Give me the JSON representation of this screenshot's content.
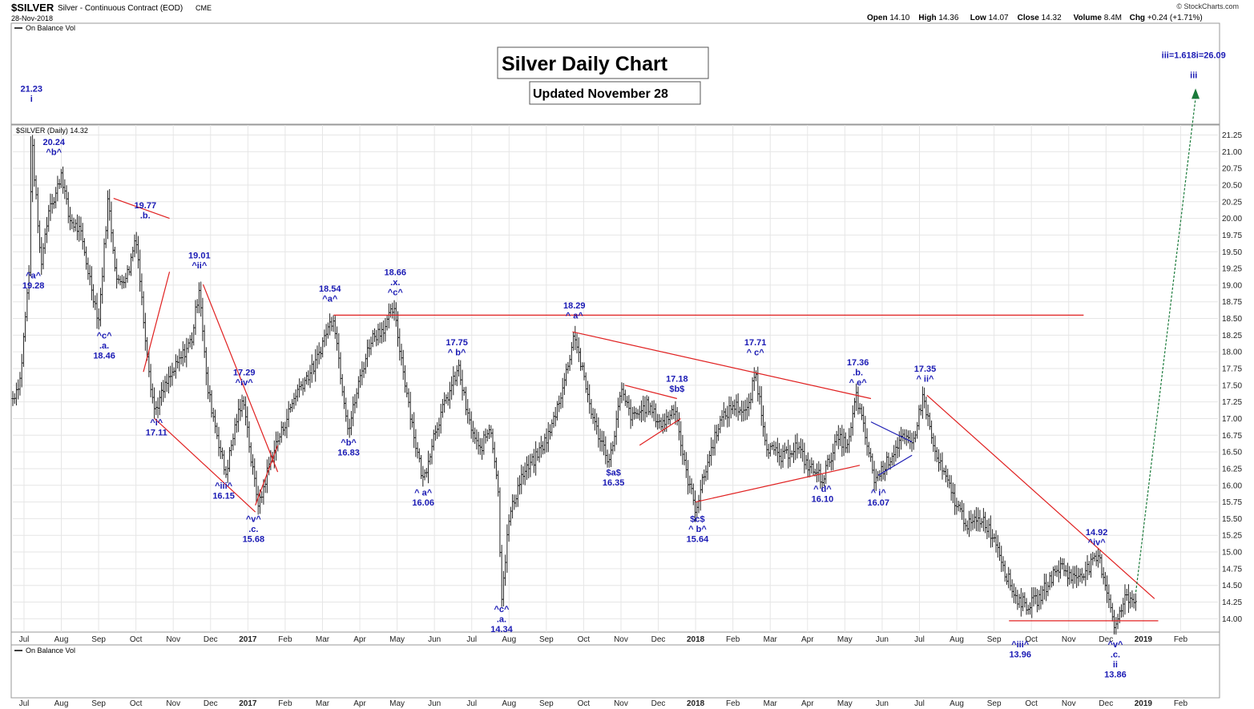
{
  "header": {
    "symbol": "$SILVER",
    "description": "Silver - Continuous Contract (EOD)",
    "exchange": "CME",
    "date": "28-Nov-2018",
    "watermark": "© StockCharts.com",
    "stats": [
      {
        "label": "Open",
        "value": "14.10"
      },
      {
        "label": "High",
        "value": "14.36"
      },
      {
        "label": "Low",
        "value": "14.07"
      },
      {
        "label": "Close",
        "value": "14.32"
      },
      {
        "label": "Volume",
        "value": "8.4M"
      },
      {
        "label": "Chg",
        "value": "+0.24 (+1.71%)"
      }
    ]
  },
  "panels": {
    "top_indicator": "On Balance Vol",
    "price_legend": "$SILVER (Daily) 14.32",
    "bottom_indicator": "On Balance Vol"
  },
  "titles": {
    "main": "Silver Daily Chart",
    "updated": "Updated November 28"
  },
  "colors": {
    "price_bar": "#222222",
    "trendline": "#e02020",
    "wave_label": "#1a1ab4",
    "projection": "#1a7a3a",
    "triangle_blue": "#1a1ab4",
    "grid": "#e6e6e6"
  },
  "chart_data": {
    "type": "ohlc",
    "series_name": "$SILVER (Daily)",
    "yrange": [
      13.8,
      21.3
    ],
    "yticks": [
      "21.25",
      "21.00",
      "20.75",
      "20.50",
      "20.25",
      "20.00",
      "19.75",
      "19.50",
      "19.25",
      "19.00",
      "18.75",
      "18.50",
      "18.25",
      "18.00",
      "17.75",
      "17.50",
      "17.25",
      "17.00",
      "16.75",
      "16.50",
      "16.25",
      "16.00",
      "15.75",
      "15.50",
      "15.25",
      "15.00",
      "14.75",
      "14.50",
      "14.25",
      "14.00"
    ],
    "xlabels": [
      {
        "label": "Jul",
        "t": 0.3
      },
      {
        "label": "Aug",
        "t": 1.3
      },
      {
        "label": "Sep",
        "t": 2.3
      },
      {
        "label": "Oct",
        "t": 3.3
      },
      {
        "label": "Nov",
        "t": 4.3
      },
      {
        "label": "Dec",
        "t": 5.3
      },
      {
        "label": "2017",
        "t": 6.3
      },
      {
        "label": "Feb",
        "t": 7.3
      },
      {
        "label": "Mar",
        "t": 8.3
      },
      {
        "label": "Apr",
        "t": 9.3
      },
      {
        "label": "May",
        "t": 10.3
      },
      {
        "label": "Jun",
        "t": 11.3
      },
      {
        "label": "Jul",
        "t": 12.3
      },
      {
        "label": "Aug",
        "t": 13.3
      },
      {
        "label": "Sep",
        "t": 14.3
      },
      {
        "label": "Oct",
        "t": 15.3
      },
      {
        "label": "Nov",
        "t": 16.3
      },
      {
        "label": "Dec",
        "t": 17.3
      },
      {
        "label": "2018",
        "t": 18.3
      },
      {
        "label": "Feb",
        "t": 19.3
      },
      {
        "label": "Mar",
        "t": 20.3
      },
      {
        "label": "Apr",
        "t": 21.3
      },
      {
        "label": "May",
        "t": 22.3
      },
      {
        "label": "Jun",
        "t": 23.3
      },
      {
        "label": "Jul",
        "t": 24.3
      },
      {
        "label": "Aug",
        "t": 25.3
      },
      {
        "label": "Sep",
        "t": 26.3
      },
      {
        "label": "Oct",
        "t": 27.3
      },
      {
        "label": "Nov",
        "t": 28.3
      },
      {
        "label": "Dec",
        "t": 29.3
      },
      {
        "label": "2019",
        "t": 30.3
      },
      {
        "label": "Feb",
        "t": 31.3
      }
    ],
    "tmax": 32.3,
    "price_path": [
      [
        0.0,
        17.3
      ],
      [
        0.2,
        17.6
      ],
      [
        0.45,
        19.3
      ],
      [
        0.5,
        21.23
      ],
      [
        0.75,
        19.3
      ],
      [
        1.0,
        20.3
      ],
      [
        1.1,
        20.24
      ],
      [
        1.3,
        20.7
      ],
      [
        1.5,
        20.0
      ],
      [
        1.8,
        19.8
      ],
      [
        2.1,
        19.0
      ],
      [
        2.3,
        18.46
      ],
      [
        2.55,
        20.3
      ],
      [
        2.8,
        19.0
      ],
      [
        3.1,
        19.2
      ],
      [
        3.3,
        19.77
      ],
      [
        3.5,
        18.5
      ],
      [
        3.7,
        17.5
      ],
      [
        3.8,
        17.11
      ],
      [
        4.1,
        17.5
      ],
      [
        4.5,
        17.9
      ],
      [
        4.8,
        18.2
      ],
      [
        5.0,
        19.01
      ],
      [
        5.2,
        17.5
      ],
      [
        5.5,
        16.7
      ],
      [
        5.7,
        16.15
      ],
      [
        6.0,
        17.0
      ],
      [
        6.2,
        17.29
      ],
      [
        6.4,
        16.3
      ],
      [
        6.6,
        15.68
      ],
      [
        6.9,
        16.4
      ],
      [
        7.2,
        16.8
      ],
      [
        7.6,
        17.4
      ],
      [
        8.1,
        17.8
      ],
      [
        8.4,
        18.3
      ],
      [
        8.6,
        18.54
      ],
      [
        8.8,
        17.6
      ],
      [
        9.0,
        16.83
      ],
      [
        9.3,
        17.6
      ],
      [
        9.6,
        18.2
      ],
      [
        10.0,
        18.4
      ],
      [
        10.2,
        18.66
      ],
      [
        10.5,
        17.6
      ],
      [
        10.8,
        16.6
      ],
      [
        11.0,
        16.06
      ],
      [
        11.3,
        16.8
      ],
      [
        11.7,
        17.4
      ],
      [
        11.95,
        17.75
      ],
      [
        12.2,
        17.0
      ],
      [
        12.5,
        16.5
      ],
      [
        12.8,
        16.9
      ],
      [
        13.0,
        16.0
      ],
      [
        13.1,
        14.34
      ],
      [
        13.3,
        15.5
      ],
      [
        13.6,
        16.1
      ],
      [
        14.0,
        16.4
      ],
      [
        14.4,
        16.8
      ],
      [
        14.8,
        17.6
      ],
      [
        15.05,
        18.29
      ],
      [
        15.3,
        17.6
      ],
      [
        15.6,
        16.9
      ],
      [
        16.0,
        16.35
      ],
      [
        16.3,
        17.4
      ],
      [
        16.6,
        17.0
      ],
      [
        17.0,
        17.2
      ],
      [
        17.4,
        16.9
      ],
      [
        17.75,
        17.18
      ],
      [
        18.0,
        16.3
      ],
      [
        18.3,
        15.64
      ],
      [
        18.6,
        16.3
      ],
      [
        18.9,
        16.9
      ],
      [
        19.3,
        17.2
      ],
      [
        19.7,
        17.1
      ],
      [
        19.9,
        17.71
      ],
      [
        20.2,
        16.6
      ],
      [
        20.6,
        16.4
      ],
      [
        21.0,
        16.6
      ],
      [
        21.3,
        16.3
      ],
      [
        21.7,
        16.1
      ],
      [
        22.1,
        16.7
      ],
      [
        22.4,
        16.6
      ],
      [
        22.6,
        17.36
      ],
      [
        22.9,
        16.6
      ],
      [
        23.1,
        16.07
      ],
      [
        23.5,
        16.4
      ],
      [
        23.8,
        16.7
      ],
      [
        24.1,
        16.6
      ],
      [
        24.4,
        17.35
      ],
      [
        24.7,
        16.5
      ],
      [
        25.0,
        16.1
      ],
      [
        25.3,
        15.7
      ],
      [
        25.6,
        15.4
      ],
      [
        26.0,
        15.5
      ],
      [
        26.4,
        15.1
      ],
      [
        26.6,
        14.7
      ],
      [
        26.9,
        14.3
      ],
      [
        27.2,
        14.2
      ],
      [
        27.5,
        14.3
      ],
      [
        27.8,
        14.6
      ],
      [
        28.1,
        14.8
      ],
      [
        28.4,
        14.6
      ],
      [
        28.8,
        14.75
      ],
      [
        29.1,
        14.92
      ],
      [
        29.3,
        14.5
      ],
      [
        29.55,
        13.86
      ],
      [
        29.8,
        14.3
      ],
      [
        30.1,
        14.32
      ]
    ],
    "trendlines_red": [
      {
        "t1": 2.7,
        "p1": 20.3,
        "t2": 4.2,
        "p2": 20.0
      },
      {
        "t1": 3.5,
        "p1": 17.7,
        "t2": 4.2,
        "p2": 19.2
      },
      {
        "t1": 3.8,
        "p1": 17.0,
        "t2": 6.5,
        "p2": 15.6
      },
      {
        "t1": 5.1,
        "p1": 19.01,
        "t2": 7.1,
        "p2": 16.2
      },
      {
        "t1": 6.5,
        "p1": 15.7,
        "t2": 7.1,
        "p2": 16.6
      },
      {
        "t1": 8.6,
        "p1": 18.55,
        "t2": 28.7,
        "p2": 18.55
      },
      {
        "t1": 15.0,
        "p1": 18.3,
        "t2": 23.0,
        "p2": 17.3
      },
      {
        "t1": 16.4,
        "p1": 17.5,
        "t2": 17.8,
        "p2": 17.3
      },
      {
        "t1": 16.8,
        "p1": 16.6,
        "t2": 17.9,
        "p2": 17.0
      },
      {
        "t1": 18.3,
        "p1": 15.75,
        "t2": 22.7,
        "p2": 16.3
      },
      {
        "t1": 24.5,
        "p1": 17.35,
        "t2": 30.6,
        "p2": 14.3
      },
      {
        "t1": 26.7,
        "p1": 13.97,
        "t2": 30.7,
        "p2": 13.97
      }
    ],
    "trendlines_blue": [
      {
        "t1": 23.0,
        "p1": 16.95,
        "t2": 24.1,
        "p2": 16.65
      },
      {
        "t1": 23.2,
        "p1": 16.15,
        "t2": 24.1,
        "p2": 16.45
      }
    ],
    "projection": {
      "t1": 30.1,
      "p1": 14.4,
      "t2": 31.7,
      "p2": 21.9
    },
    "annotations": [
      {
        "lines": [
          "21.23",
          "i"
        ],
        "t": 0.5,
        "p": 21.9,
        "big": 1
      },
      {
        "lines": [
          "20.24",
          "^b^"
        ],
        "t": 1.1,
        "p": 21.1
      },
      {
        "lines": [
          "^a^",
          "19.28"
        ],
        "t": 0.55,
        "p": 19.1
      },
      {
        "lines": [
          "19.77",
          ".b."
        ],
        "t": 3.55,
        "p": 20.15
      },
      {
        "lines": [
          "^c^",
          ".a.",
          "18.46"
        ],
        "t": 2.45,
        "p": 18.2
      },
      {
        "lines": [
          "19.01",
          "^ii^"
        ],
        "t": 5.0,
        "p": 19.4
      },
      {
        "lines": [
          "^i^",
          "17.11"
        ],
        "t": 3.85,
        "p": 16.9
      },
      {
        "lines": [
          "17.29",
          "^iv^"
        ],
        "t": 6.2,
        "p": 17.65
      },
      {
        "lines": [
          "^iii^",
          "16.15"
        ],
        "t": 5.65,
        "p": 15.95
      },
      {
        "lines": [
          "^v^",
          ".c.",
          "15.68"
        ],
        "t": 6.45,
        "p": 15.45
      },
      {
        "lines": [
          "18.54",
          "^a^"
        ],
        "t": 8.5,
        "p": 18.9
      },
      {
        "lines": [
          "^b^",
          "16.83"
        ],
        "t": 9.0,
        "p": 16.6
      },
      {
        "lines": [
          "18.66",
          ".x.",
          "^c^"
        ],
        "t": 10.25,
        "p": 19.15
      },
      {
        "lines": [
          "^ a^",
          "16.06"
        ],
        "t": 11.0,
        "p": 15.85
      },
      {
        "lines": [
          "17.75",
          "^ b^"
        ],
        "t": 11.9,
        "p": 18.1
      },
      {
        "lines": [
          "^c^",
          ".a.",
          "14.34"
        ],
        "t": 13.1,
        "p": 14.1
      },
      {
        "lines": [
          "18.29",
          "^ a^"
        ],
        "t": 15.05,
        "p": 18.65
      },
      {
        "lines": [
          "$a$",
          "16.35"
        ],
        "t": 16.1,
        "p": 16.15
      },
      {
        "lines": [
          "17.18",
          "$b$"
        ],
        "t": 17.8,
        "p": 17.55
      },
      {
        "lines": [
          "$c$",
          "^ b^",
          "15.64"
        ],
        "t": 18.35,
        "p": 15.45
      },
      {
        "lines": [
          "17.71",
          "^ c^"
        ],
        "t": 19.9,
        "p": 18.1
      },
      {
        "lines": [
          "^ d^",
          "16.10"
        ],
        "t": 21.7,
        "p": 15.9
      },
      {
        "lines": [
          "17.36",
          ".b.",
          "^ e^"
        ],
        "t": 22.65,
        "p": 17.8
      },
      {
        "lines": [
          "^ i^",
          "16.07"
        ],
        "t": 23.2,
        "p": 15.85
      },
      {
        "lines": [
          "17.35",
          "^ ii^"
        ],
        "t": 24.45,
        "p": 17.7
      },
      {
        "lines": [
          "14.92",
          "^iv^"
        ],
        "t": 29.05,
        "p": 15.25
      },
      {
        "lines": [
          "iii=1.618i=26.09"
        ],
        "t": 31.65,
        "p": 22.4,
        "small": 1
      },
      {
        "lines": [
          "iii"
        ],
        "t": 31.65,
        "p": 22.1,
        "big": 1
      }
    ],
    "bottom_annotations": [
      {
        "lines": [
          "^iii^",
          "13.96"
        ],
        "t": 27.0,
        "y": 808
      },
      {
        "lines": [
          "^v^",
          ".c.",
          "ii",
          "13.86"
        ],
        "t": 29.55,
        "y": 808
      }
    ]
  }
}
